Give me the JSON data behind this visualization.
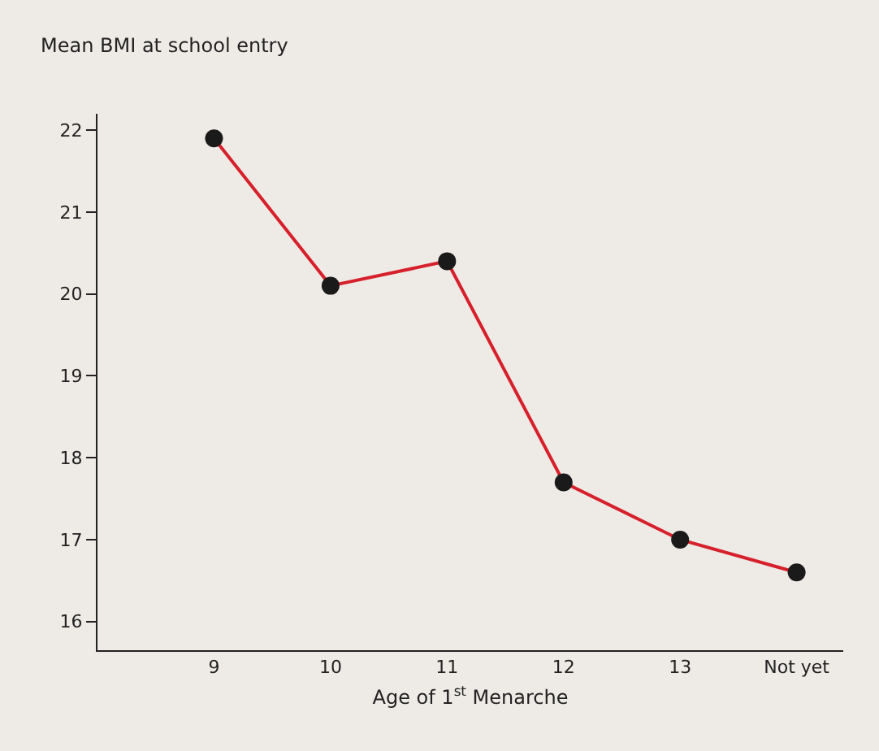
{
  "chart_data": {
    "type": "line",
    "ylabel": "Mean BMI at school entry",
    "xlabel": "Age of 1$^{st}$ Menarche",
    "categories": [
      "9",
      "10",
      "11",
      "12",
      "13",
      "Not yet"
    ],
    "series": [
      {
        "color": "#d6202b",
        "values": [
          21.9,
          20.1,
          20.4,
          17.7,
          17.0,
          16.6
        ]
      }
    ],
    "ylim": [
      15.65,
      22.2
    ],
    "yticks": [
      16,
      17,
      18,
      19,
      20,
      21,
      22
    ],
    "marker": "circle",
    "line_style": "solid"
  }
}
